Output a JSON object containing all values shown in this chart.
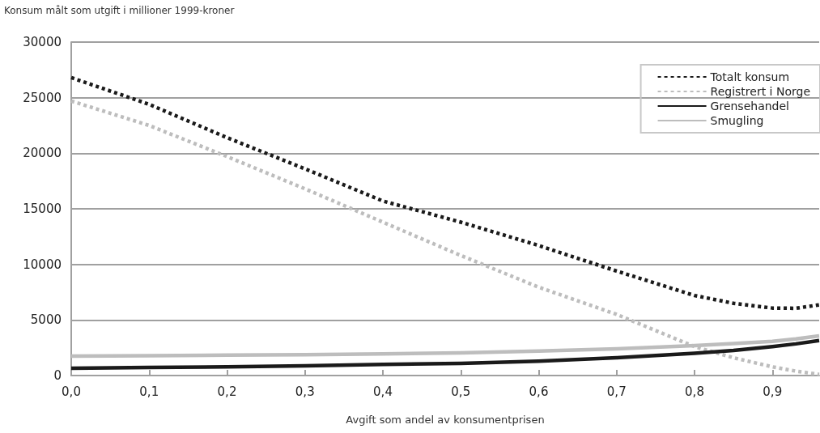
{
  "chart_data": {
    "type": "line",
    "ylabel": "Konsum målt som utgift i millioner 1999-kroner",
    "xlabel": "Avgift som andel av konsumentprisen",
    "x": [
      0,
      0.1,
      0.2,
      0.3,
      0.4,
      0.5,
      0.6,
      0.7,
      0.8,
      0.85,
      0.9,
      0.93,
      0.96
    ],
    "series": [
      {
        "name": "Totalt konsum",
        "color": "#1a1a1a",
        "line_style": "dotted",
        "values": [
          26800,
          24400,
          21400,
          18600,
          15700,
          13800,
          11700,
          9400,
          7200,
          6500,
          6070,
          6050,
          6360
        ]
      },
      {
        "name": "Registrert i Norge",
        "color": "#bdbdbd",
        "line_style": "dotted",
        "values": [
          24700,
          22500,
          19700,
          16800,
          13800,
          10800,
          7950,
          5500,
          2600,
          1600,
          780,
          400,
          100
        ]
      },
      {
        "name": "Grensehandel",
        "color": "#1a1a1a",
        "line_style": "solid",
        "values": [
          650,
          720,
          790,
          870,
          1000,
          1100,
          1300,
          1600,
          2000,
          2250,
          2600,
          2850,
          3150
        ]
      },
      {
        "name": "Smugling",
        "color": "#bdbdbd",
        "line_style": "solid",
        "values": [
          1750,
          1790,
          1830,
          1880,
          1950,
          2040,
          2200,
          2400,
          2700,
          2880,
          3080,
          3300,
          3570
        ]
      }
    ],
    "xlim": [
      0,
      0.96
    ],
    "xticks": [
      {
        "value": 0,
        "label": "0,0"
      },
      {
        "value": 0.1,
        "label": "0,1"
      },
      {
        "value": 0.2,
        "label": "0,2"
      },
      {
        "value": 0.3,
        "label": "0,3"
      },
      {
        "value": 0.4,
        "label": "0,4"
      },
      {
        "value": 0.5,
        "label": "0,5"
      },
      {
        "value": 0.6,
        "label": "0,6"
      },
      {
        "value": 0.7,
        "label": "0,7"
      },
      {
        "value": 0.8,
        "label": "0,8"
      },
      {
        "value": 0.9,
        "label": "0,9"
      }
    ],
    "ylim": [
      0,
      30000
    ],
    "yticks": [
      0,
      5000,
      10000,
      15000,
      20000,
      25000,
      30000
    ],
    "grid": "y",
    "legend": "top right",
    "marker": "none"
  }
}
